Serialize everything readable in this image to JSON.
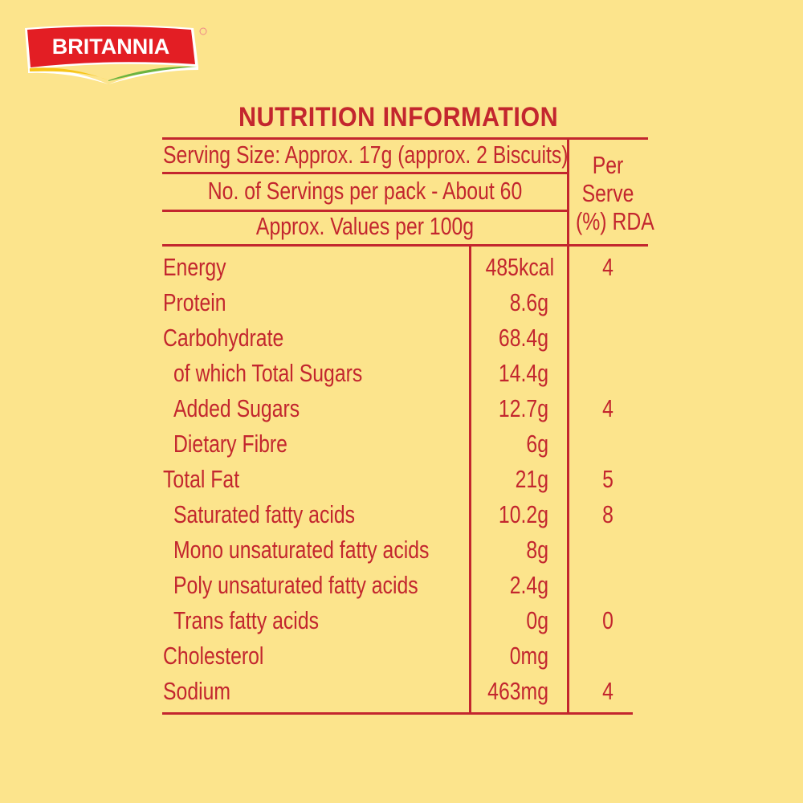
{
  "brand": {
    "logo_text": "BRITANNIA",
    "colors": {
      "red": "#e31e24",
      "yellow": "#f7c51a",
      "green": "#6cb43f"
    }
  },
  "label": {
    "title": "NUTRITION INFORMATION",
    "serving_size": "Serving Size: Approx. 17g (approx. 2 Biscuits)",
    "servings_per_pack": "No. of Servings per pack - About 60",
    "values_basis": "Approx. Values per 100g",
    "rda_header": [
      "Per",
      "Serve",
      "(%) RDA"
    ],
    "rows": [
      {
        "name": "Energy",
        "value": "485kcal",
        "rda": "4",
        "indent": false
      },
      {
        "name": "Protein",
        "value": "8.6g",
        "rda": "",
        "indent": false
      },
      {
        "name": "Carbohydrate",
        "value": "68.4g",
        "rda": "",
        "indent": false
      },
      {
        "name": "of which Total Sugars",
        "value": "14.4g",
        "rda": "",
        "indent": true
      },
      {
        "name": "Added Sugars",
        "value": "12.7g",
        "rda": "4",
        "indent": true
      },
      {
        "name": "Dietary Fibre",
        "value": "6g",
        "rda": "",
        "indent": true
      },
      {
        "name": "Total Fat",
        "value": "21g",
        "rda": "5",
        "indent": false
      },
      {
        "name": "Saturated fatty acids",
        "value": "10.2g",
        "rda": "8",
        "indent": true
      },
      {
        "name": "Mono unsaturated fatty acids",
        "value": "8g",
        "rda": "",
        "indent": true
      },
      {
        "name": "Poly unsaturated fatty acids",
        "value": "2.4g",
        "rda": "",
        "indent": true
      },
      {
        "name": "Trans fatty acids",
        "value": "0g",
        "rda": "0",
        "indent": true
      },
      {
        "name": "Cholesterol",
        "value": "0mg",
        "rda": "",
        "indent": false
      },
      {
        "name": "Sodium",
        "value": "463mg",
        "rda": "4",
        "indent": false
      }
    ],
    "colors": {
      "text": "#c3262e",
      "background": "#fce48c"
    }
  }
}
